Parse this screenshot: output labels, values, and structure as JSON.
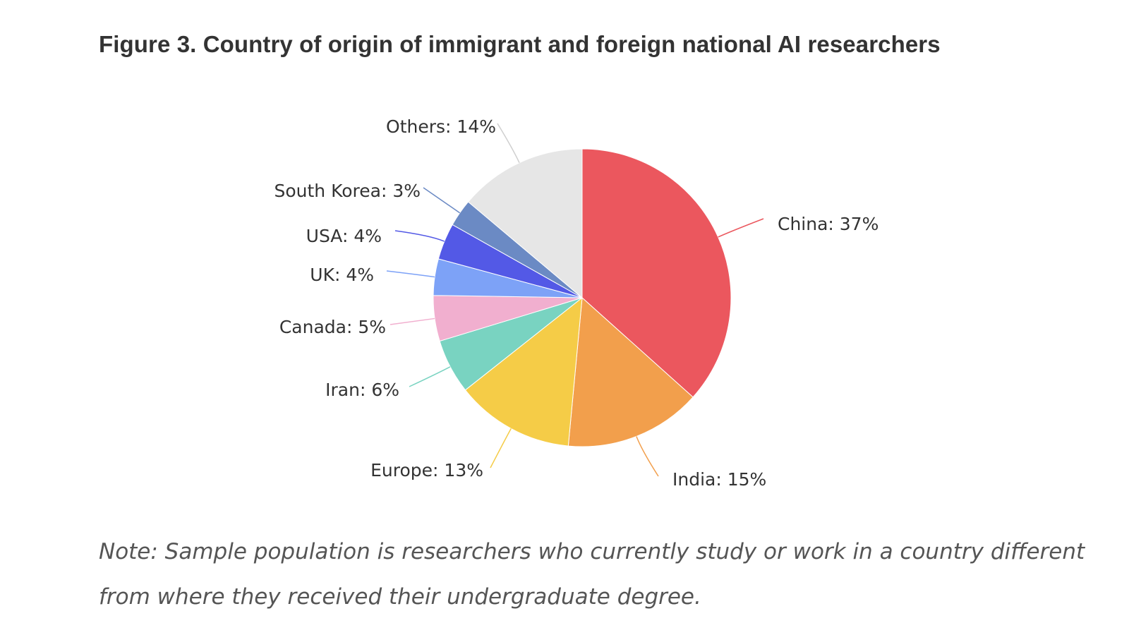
{
  "title": "Figure 3. Country of origin of immigrant and foreign national AI researchers",
  "note": "Note: Sample population is researchers who currently study or work in a country different from where they received their undergraduate degree.",
  "chart_data": {
    "type": "pie",
    "title": "Figure 3. Country of origin of immigrant and foreign national AI researchers",
    "start": "12 o'clock",
    "direction": "clockwise",
    "legend": "none",
    "slices": [
      {
        "label": "China: 37%",
        "name": "China",
        "value": 37,
        "color": "#EB575E"
      },
      {
        "label": "India: 15%",
        "name": "India",
        "value": 15,
        "color": "#F29F4C"
      },
      {
        "label": "Europe: 13%",
        "name": "Europe",
        "value": 13,
        "color": "#F5CC47"
      },
      {
        "label": "Iran: 6%",
        "name": "Iran",
        "value": 6,
        "color": "#79D3C1"
      },
      {
        "label": "Canada: 5%",
        "name": "Canada",
        "value": 5,
        "color": "#F1AFCF"
      },
      {
        "label": "UK: 4%",
        "name": "UK",
        "value": 4,
        "color": "#7DA2F7"
      },
      {
        "label": "USA: 4%",
        "name": "USA",
        "value": 4,
        "color": "#5359E6"
      },
      {
        "label": "South Korea: 3%",
        "name": "South Korea",
        "value": 3,
        "color": "#6B8AC4"
      },
      {
        "label": "Others: 14%",
        "name": "Others",
        "value": 14,
        "color": "#E6E6E6"
      }
    ]
  }
}
